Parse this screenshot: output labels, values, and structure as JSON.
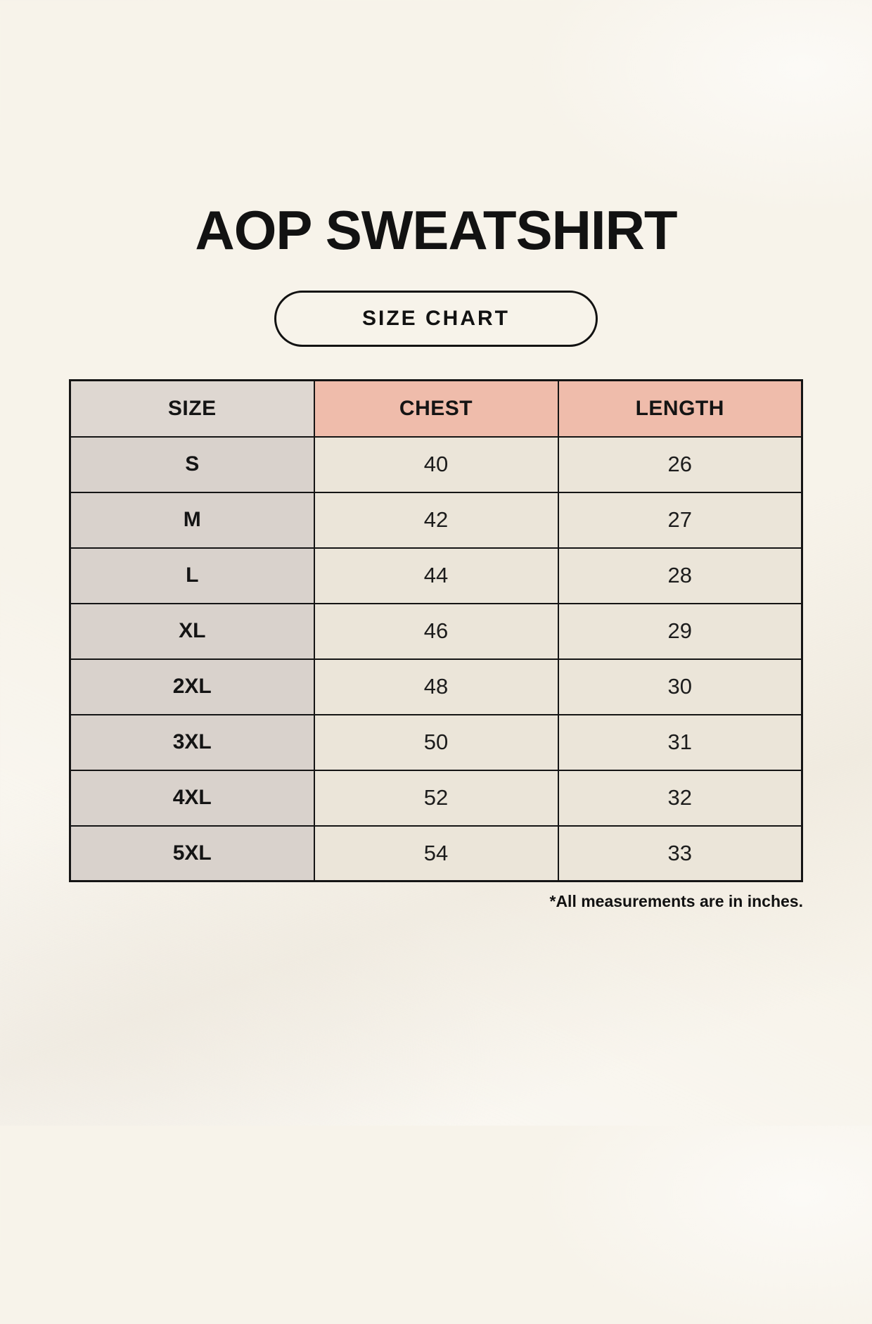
{
  "page": {
    "title": "AOP SWEATSHIRT",
    "badge": "SIZE CHART",
    "footnote": "*All measurements are in inches."
  },
  "colors": {
    "background": "#f7f3ea",
    "header_accent_pink": "#efbcab",
    "size_column_gray": "#d9d2cc",
    "size_header_gray": "#ded7d1",
    "value_cell_cream": "#ebe5d9",
    "border_black": "#151515",
    "text": "#121212"
  },
  "chart_data": {
    "type": "table",
    "title": "AOP SWEATSHIRT",
    "columns": [
      "SIZE",
      "CHEST",
      "LENGTH"
    ],
    "rows": [
      [
        "S",
        40,
        26
      ],
      [
        "M",
        42,
        27
      ],
      [
        "L",
        44,
        28
      ],
      [
        "XL",
        46,
        29
      ],
      [
        "2XL",
        48,
        30
      ],
      [
        "3XL",
        50,
        31
      ],
      [
        "4XL",
        52,
        32
      ],
      [
        "5XL",
        54,
        33
      ]
    ],
    "units": "inches"
  },
  "table": {
    "headers": [
      "SIZE",
      "CHEST",
      "LENGTH"
    ],
    "rows": [
      {
        "size": "S",
        "chest": "40",
        "length": "26"
      },
      {
        "size": "M",
        "chest": "42",
        "length": "27"
      },
      {
        "size": "L",
        "chest": "44",
        "length": "28"
      },
      {
        "size": "XL",
        "chest": "46",
        "length": "29"
      },
      {
        "size": "2XL",
        "chest": "48",
        "length": "30"
      },
      {
        "size": "3XL",
        "chest": "50",
        "length": "31"
      },
      {
        "size": "4XL",
        "chest": "52",
        "length": "32"
      },
      {
        "size": "5XL",
        "chest": "54",
        "length": "33"
      }
    ]
  }
}
